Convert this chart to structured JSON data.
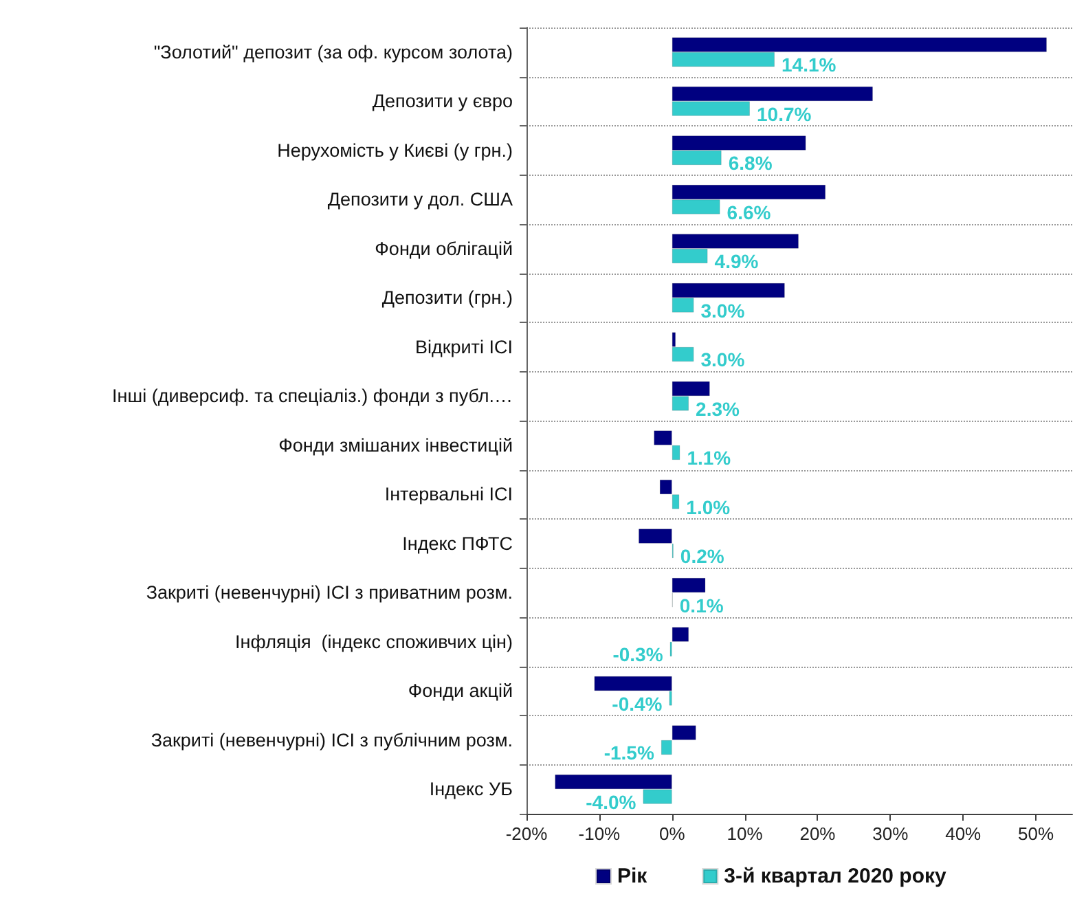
{
  "chart_data": {
    "type": "bar",
    "orientation": "horizontal",
    "categories": [
      "\"Золотий\" депозит (за оф. курсом золота)",
      "Депозити у євро",
      "Нерухомість у Києві (у грн.)",
      "Депозити у дол. США",
      "Фонди облігацій",
      "Депозити (грн.)",
      "Відкриті ІСІ",
      "Інші (диверсиф. та спеціаліз.) фонди з публ.…",
      "Фонди змішаних інвестицій",
      "Інтервальні ІСІ",
      "Індекс ПФТС",
      "Закриті (невенчурні) ІСІ з приватним розм.",
      "Інфляція  (індекс споживчих цін)",
      "Фонди акцій",
      "Закриті (невенчурні) ІСІ з публічним розм.",
      "Індекс УБ"
    ],
    "series": [
      {
        "name": "Рік",
        "color": "#000080",
        "values": [
          51.5,
          27.6,
          18.4,
          21.1,
          17.4,
          15.5,
          0.5,
          5.2,
          -2.5,
          -1.7,
          -4.6,
          4.6,
          2.3,
          -10.7,
          3.3,
          -16.1
        ]
      },
      {
        "name": "3-й квартал 2020 року",
        "color": "#33cccc",
        "values": [
          14.1,
          10.7,
          6.8,
          6.6,
          4.9,
          3.0,
          3.0,
          2.3,
          1.1,
          1.0,
          0.2,
          0.1,
          -0.3,
          -0.4,
          -1.5,
          -4.0
        ],
        "value_labels": [
          "14.1%",
          "10.7%",
          "6.8%",
          "6.6%",
          "4.9%",
          "3.0%",
          "3.0%",
          "2.3%",
          "1.1%",
          "1.0%",
          "0.2%",
          "0.1%",
          "-0.3%",
          "-0.4%",
          "-1.5%",
          "-4.0%"
        ]
      }
    ],
    "xlim": [
      -20,
      55
    ],
    "xticks": [
      {
        "value": -20,
        "label": "-20%"
      },
      {
        "value": -10,
        "label": "-10%"
      },
      {
        "value": 0,
        "label": "0%"
      },
      {
        "value": 10,
        "label": "10%"
      },
      {
        "value": 20,
        "label": "20%"
      },
      {
        "value": 30,
        "label": "30%"
      },
      {
        "value": 40,
        "label": "40%"
      },
      {
        "value": 50,
        "label": "50%"
      }
    ],
    "grid": "y",
    "legend": "bottom"
  }
}
